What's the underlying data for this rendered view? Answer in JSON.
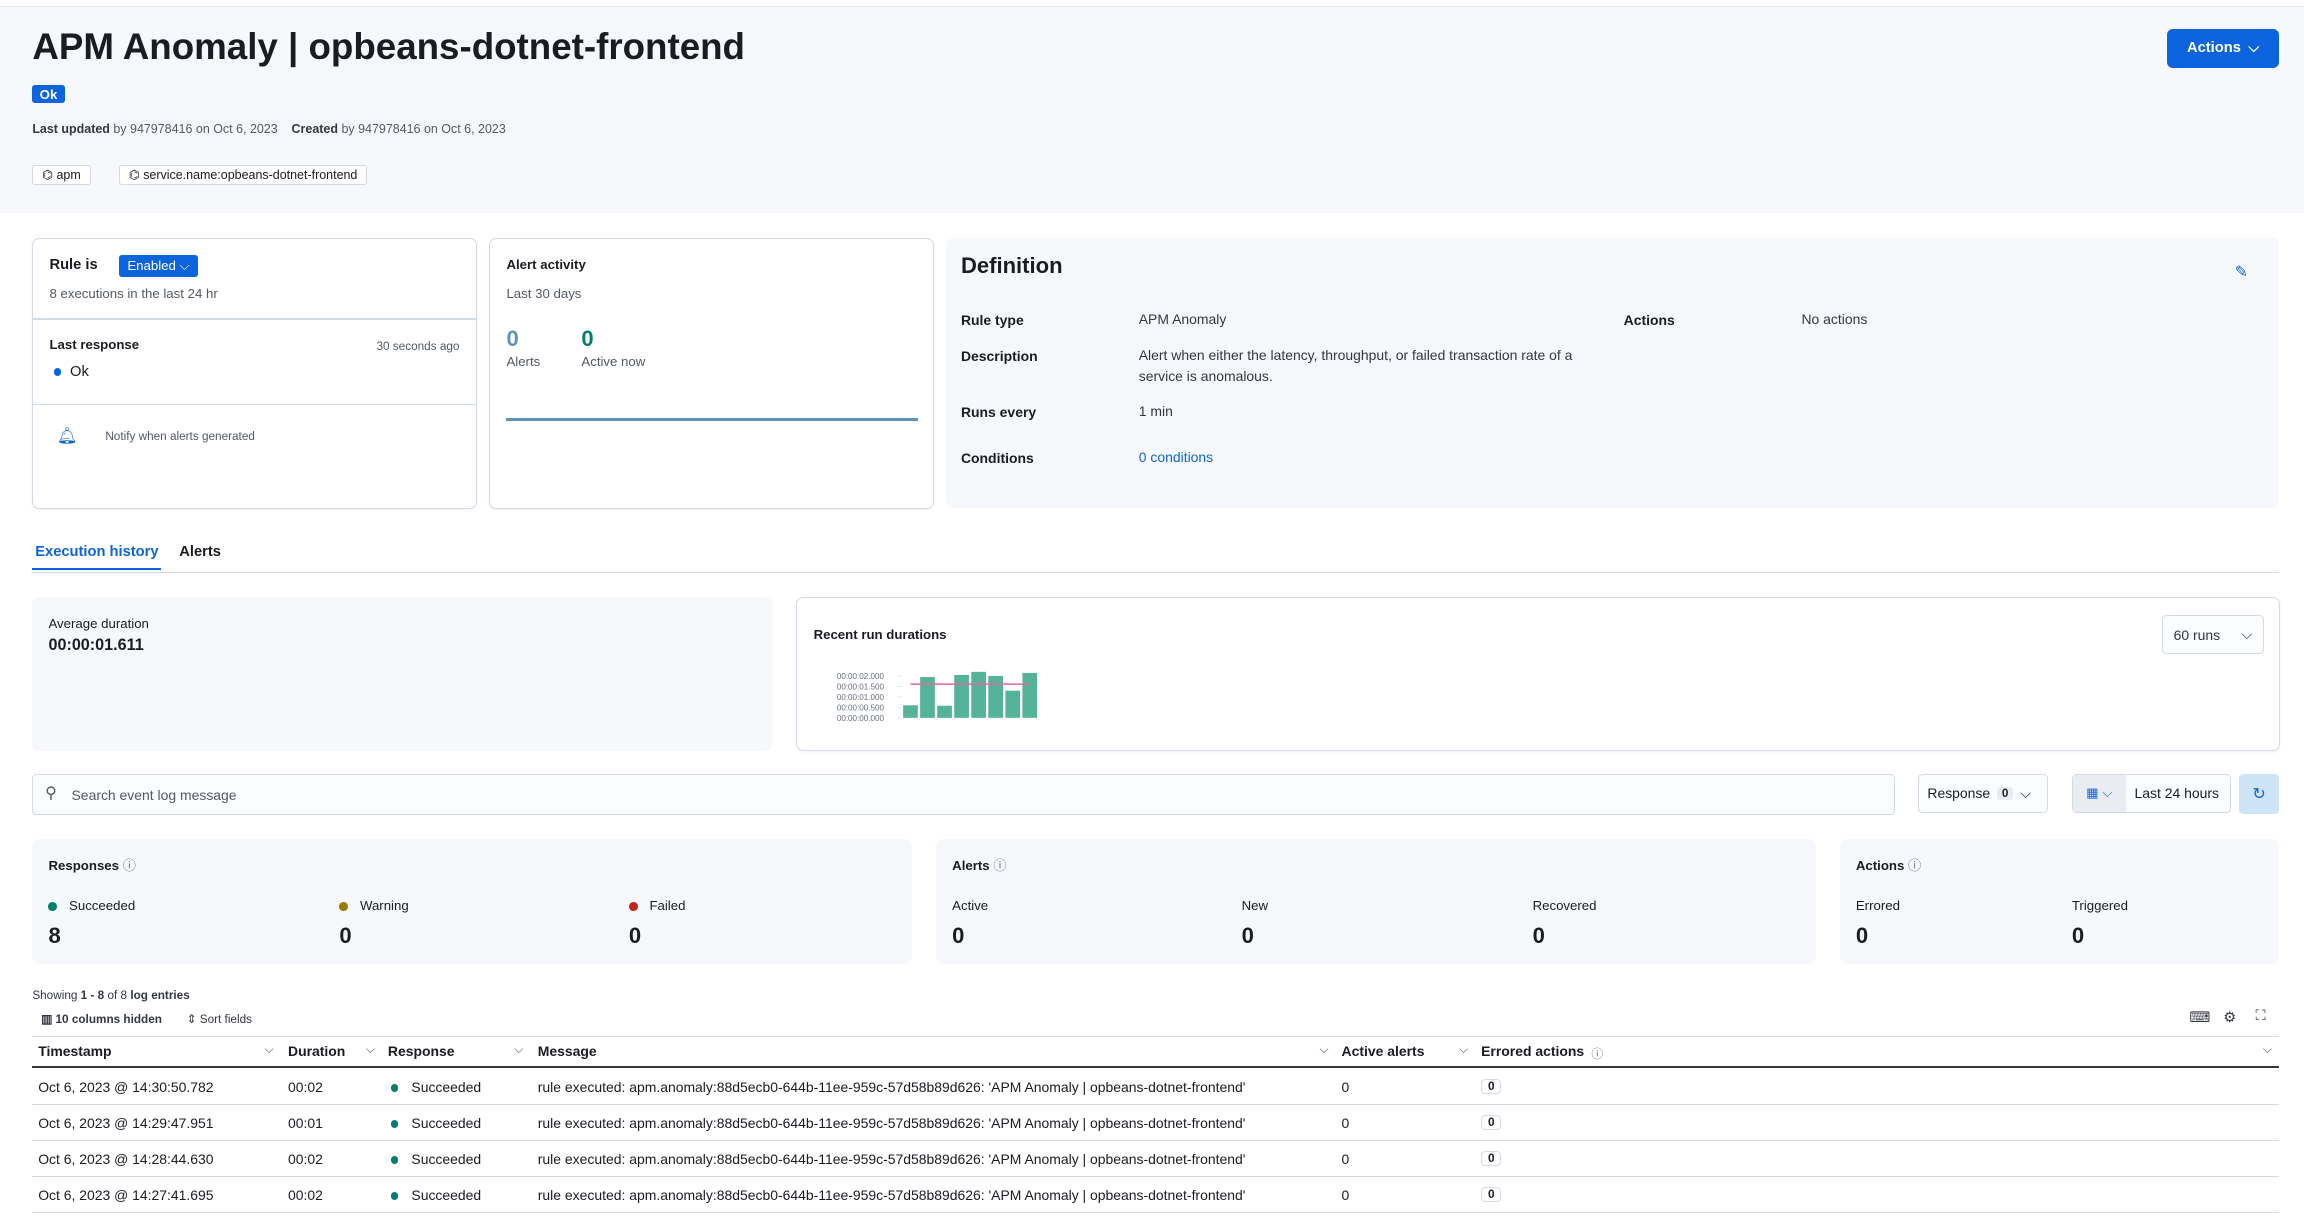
{
  "header": {
    "title": "APM Anomaly | opbeans-dotnet-frontend",
    "status": "Ok",
    "last_updated_label": "Last updated",
    "last_updated_text": "by 947978416 on Oct 6, 2023",
    "created_label": "Created",
    "created_text": "by 947978416 on Oct 6, 2023",
    "tags": [
      "apm",
      "service.name:opbeans-dotnet-frontend"
    ],
    "actions_label": "Actions"
  },
  "rule_card": {
    "rule_is": "Rule is",
    "state": "Enabled",
    "executions": "8 executions in the last 24 hr",
    "last_response_label": "Last response",
    "last_response_time": "30 seconds ago",
    "last_response_value": "Ok",
    "notify": "Notify when alerts generated"
  },
  "alert_activity": {
    "title": "Alert activity",
    "subtitle": "Last 30 days",
    "alerts_count": "0",
    "alerts_label": "Alerts",
    "active_count": "0",
    "active_label": "Active now"
  },
  "definition": {
    "title": "Definition",
    "rows": [
      {
        "label": "Rule type",
        "value": "APM Anomaly"
      },
      {
        "label": "Description",
        "value": "Alert when either the latency, throughput, or failed transaction rate of a service is anomalous."
      },
      {
        "label": "Runs every",
        "value": "1 min"
      },
      {
        "label": "Conditions",
        "value": "0 conditions"
      }
    ],
    "actions_label": "Actions",
    "actions_value": "No actions"
  },
  "tabs": [
    {
      "label": "Execution history",
      "active": true
    },
    {
      "label": "Alerts",
      "active": false
    }
  ],
  "avg_duration": {
    "label": "Average duration",
    "value": "00:00:01.611"
  },
  "recent_runs": {
    "title": "Recent run durations",
    "runs_select": "60 runs"
  },
  "chart_data": {
    "type": "bar",
    "title": "Recent run durations",
    "y_ticks": [
      "00:00:00.000",
      "00:00:00.500",
      "00:00:01.000",
      "00:00:01.500",
      "00:00:02.000"
    ],
    "ylim": [
      0,
      2.25
    ],
    "values": [
      0.6,
      1.95,
      0.58,
      2.05,
      2.2,
      2.0,
      1.3,
      2.15
    ],
    "average": 1.611,
    "bar_color": "#54b399",
    "average_line_color": "#e7679b"
  },
  "filters": {
    "search_placeholder": "Search event log message",
    "response_label": "Response",
    "response_count": "0",
    "date_label": "Last 24 hours"
  },
  "summary": {
    "responses": {
      "title": "Responses",
      "items": [
        {
          "label": "Succeeded",
          "value": "8",
          "color": "#017d73"
        },
        {
          "label": "Warning",
          "value": "0",
          "color": "#9b7a06"
        },
        {
          "label": "Failed",
          "value": "0",
          "color": "#bd271e"
        }
      ]
    },
    "alerts": {
      "title": "Alerts",
      "items": [
        {
          "label": "Active",
          "value": "0"
        },
        {
          "label": "New",
          "value": "0"
        },
        {
          "label": "Recovered",
          "value": "0"
        }
      ]
    },
    "actions": {
      "title": "Actions",
      "items": [
        {
          "label": "Errored",
          "value": "0"
        },
        {
          "label": "Triggered",
          "value": "0"
        }
      ]
    }
  },
  "table": {
    "showing_prefix": "Showing",
    "showing_range": "1 - 8",
    "showing_of": "of 8",
    "showing_suffix": "log entries",
    "columns_hidden": "10 columns hidden",
    "sort_fields": "Sort fields",
    "columns": [
      "Timestamp",
      "Duration",
      "Response",
      "Message",
      "Active alerts",
      "Errored actions"
    ],
    "rows": [
      {
        "timestamp": "Oct 6, 2023 @ 14:30:50.782",
        "duration": "00:02",
        "response": "Succeeded",
        "message": "rule executed: apm.anomaly:88d5ecb0-644b-11ee-959c-57d58b89d626: 'APM Anomaly | opbeans-dotnet-frontend'",
        "active_alerts": "0",
        "errored_actions": "0"
      },
      {
        "timestamp": "Oct 6, 2023 @ 14:29:47.951",
        "duration": "00:01",
        "response": "Succeeded",
        "message": "rule executed: apm.anomaly:88d5ecb0-644b-11ee-959c-57d58b89d626: 'APM Anomaly | opbeans-dotnet-frontend'",
        "active_alerts": "0",
        "errored_actions": "0"
      },
      {
        "timestamp": "Oct 6, 2023 @ 14:28:44.630",
        "duration": "00:02",
        "response": "Succeeded",
        "message": "rule executed: apm.anomaly:88d5ecb0-644b-11ee-959c-57d58b89d626: 'APM Anomaly | opbeans-dotnet-frontend'",
        "active_alerts": "0",
        "errored_actions": "0"
      },
      {
        "timestamp": "Oct 6, 2023 @ 14:27:41.695",
        "duration": "00:02",
        "response": "Succeeded",
        "message": "rule executed: apm.anomaly:88d5ecb0-644b-11ee-959c-57d58b89d626: 'APM Anomaly | opbeans-dotnet-frontend'",
        "active_alerts": "0",
        "errored_actions": "0"
      }
    ]
  }
}
